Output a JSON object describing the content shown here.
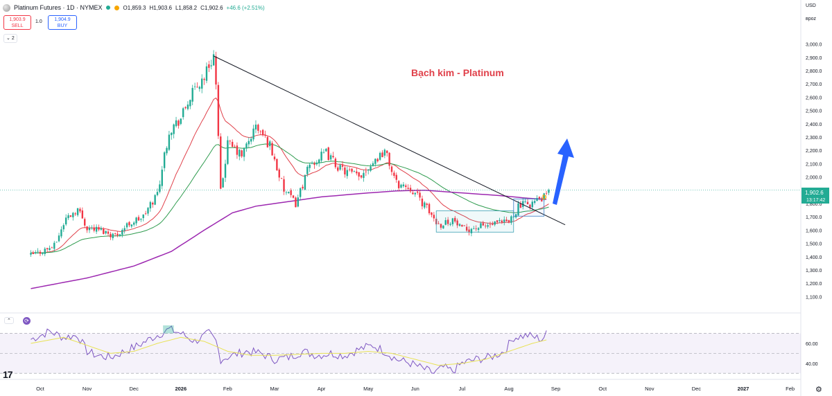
{
  "header": {
    "symbol_title": "Platinum Futures · 1D · NYMEX",
    "open": "O1,859.3",
    "high": "H1,903.6",
    "low": "L1,858.2",
    "close": "C1,902.6",
    "change": "+46.6 (+2.51%)",
    "sell_price": "1,903.9",
    "sell_label": "SELL",
    "qty": "1.0",
    "buy_price": "1,904.9",
    "buy_label": "BUY",
    "collapse_label": "2",
    "currency": "USD",
    "unit": "вpoz"
  },
  "annotation_title": "Bạch kim - Platinum",
  "d_marker": "D",
  "price_tag": {
    "price": "1,902.6",
    "countdown": "13:17:42"
  },
  "rsi_collapse_label": "⌃",
  "colors": {
    "up": "#22ab94",
    "down": "#f23645",
    "ema20": "#e0404a",
    "ema50": "#2e9b4e",
    "ema200": "#9c27b0",
    "rsi": "#7e57c2",
    "rsi_ma": "#e8e254",
    "arrow": "#2962ff",
    "title": "#e0404a"
  },
  "icons": [
    "platinum-symbol-icon",
    "market-open-icon",
    "dividend-icon",
    "tradingview-logo-icon",
    "settings-gear-icon"
  ],
  "chart_data": [
    {
      "type": "candlestick",
      "title": "Platinum Futures · 1D · NYMEX",
      "y_ticks": [
        "3,000.0",
        "2,900.0",
        "2,800.0",
        "2,700.0",
        "2,600.0",
        "2,500.0",
        "2,400.0",
        "2,300.0",
        "2,200.0",
        "2,100.0",
        "2,000.0",
        "1,800.0",
        "1,700.0",
        "1,600.0",
        "1,500.0",
        "1,400.0",
        "1,300.0",
        "1,200.0",
        "1,100.0"
      ],
      "ylim": [
        1050,
        3050
      ],
      "x_ticks": [
        "Oct",
        "Nov",
        "Dec",
        "2026",
        "Feb",
        "Mar",
        "Apr",
        "May",
        "Jun",
        "Jul",
        "Aug",
        "Sep",
        "Oct",
        "Nov",
        "Dec",
        "2027",
        "Feb"
      ],
      "x_tick_months": [
        0,
        1,
        2,
        3,
        4,
        5,
        6,
        7,
        8,
        9,
        10,
        11,
        12,
        13,
        14,
        15,
        16
      ],
      "last_price": 1902.6,
      "close_path": [
        [
          -0.2,
          1410
        ],
        [
          0.3,
          1480
        ],
        [
          0.55,
          1690
        ],
        [
          0.8,
          1760
        ],
        [
          1.0,
          1620
        ],
        [
          1.3,
          1600
        ],
        [
          1.6,
          1560
        ],
        [
          1.9,
          1650
        ],
        [
          2.2,
          1700
        ],
        [
          2.5,
          1880
        ],
        [
          2.75,
          2350
        ],
        [
          3.0,
          2440
        ],
        [
          3.2,
          2600
        ],
        [
          3.5,
          2760
        ],
        [
          3.7,
          2920
        ],
        [
          3.75,
          2680
        ],
        [
          3.85,
          1880
        ],
        [
          4.0,
          2250
        ],
        [
          4.3,
          2160
        ],
        [
          4.6,
          2380
        ],
        [
          4.9,
          2240
        ],
        [
          5.2,
          1900
        ],
        [
          5.45,
          1800
        ],
        [
          5.75,
          2090
        ],
        [
          6.1,
          2180
        ],
        [
          6.4,
          2060
        ],
        [
          6.8,
          2000
        ],
        [
          7.0,
          2080
        ],
        [
          7.35,
          2200
        ],
        [
          7.6,
          1950
        ],
        [
          7.9,
          1920
        ],
        [
          8.15,
          1810
        ],
        [
          8.5,
          1640
        ],
        [
          8.8,
          1680
        ],
        [
          9.0,
          1600
        ],
        [
          9.3,
          1620
        ],
        [
          9.65,
          1640
        ],
        [
          10.0,
          1660
        ],
        [
          10.2,
          1780
        ],
        [
          10.45,
          1800
        ],
        [
          10.75,
          1845
        ],
        [
          10.85,
          1902.6
        ]
      ],
      "ema200": [
        [
          -0.2,
          1160
        ],
        [
          1.0,
          1240
        ],
        [
          2.0,
          1330
        ],
        [
          2.8,
          1440
        ],
        [
          3.5,
          1600
        ],
        [
          4.1,
          1730
        ],
        [
          4.6,
          1780
        ],
        [
          5.2,
          1810
        ],
        [
          6.0,
          1850
        ],
        [
          7.0,
          1880
        ],
        [
          7.6,
          1895
        ],
        [
          8.2,
          1900
        ],
        [
          9.0,
          1880
        ],
        [
          9.8,
          1860
        ],
        [
          10.4,
          1840
        ],
        [
          10.85,
          1830
        ]
      ],
      "trendline": [
        [
          3.7,
          2910
        ],
        [
          11.2,
          1640
        ]
      ],
      "title_annotation": "Bạch kim - Platinum"
    },
    {
      "type": "line",
      "name_hint": "RSI",
      "y_ticks": [
        "60.00",
        "40.00"
      ],
      "ylim": [
        26,
        78
      ],
      "upper_band": 70,
      "lower_band": 30,
      "rsi_path": [
        [
          -0.2,
          64
        ],
        [
          0.2,
          72
        ],
        [
          0.5,
          66
        ],
        [
          0.8,
          68
        ],
        [
          1.0,
          52
        ],
        [
          1.2,
          48
        ],
        [
          1.5,
          46
        ],
        [
          1.8,
          52
        ],
        [
          2.1,
          58
        ],
        [
          2.4,
          66
        ],
        [
          2.75,
          74
        ],
        [
          3.0,
          70
        ],
        [
          3.3,
          62
        ],
        [
          3.6,
          70
        ],
        [
          3.75,
          62
        ],
        [
          3.85,
          44
        ],
        [
          4.1,
          48
        ],
        [
          4.4,
          52
        ],
        [
          4.7,
          50
        ],
        [
          5.0,
          44
        ],
        [
          5.3,
          46
        ],
        [
          5.6,
          52
        ],
        [
          5.9,
          48
        ],
        [
          6.2,
          50
        ],
        [
          6.5,
          48
        ],
        [
          6.8,
          54
        ],
        [
          7.1,
          58
        ],
        [
          7.35,
          52
        ],
        [
          7.6,
          44
        ],
        [
          7.9,
          40
        ],
        [
          8.2,
          34
        ],
        [
          8.4,
          30
        ],
        [
          8.6,
          36
        ],
        [
          8.8,
          32
        ],
        [
          9.0,
          40
        ],
        [
          9.3,
          44
        ],
        [
          9.6,
          46
        ],
        [
          9.9,
          52
        ],
        [
          10.1,
          66
        ],
        [
          10.4,
          68
        ],
        [
          10.7,
          64
        ],
        [
          10.85,
          72
        ]
      ],
      "ma_path": [
        [
          -0.2,
          60
        ],
        [
          0.5,
          66
        ],
        [
          1.0,
          58
        ],
        [
          1.5,
          50
        ],
        [
          2.0,
          52
        ],
        [
          2.5,
          60
        ],
        [
          3.0,
          66
        ],
        [
          3.5,
          62
        ],
        [
          4.0,
          52
        ],
        [
          4.5,
          48
        ],
        [
          5.0,
          48
        ],
        [
          5.5,
          49
        ],
        [
          6.0,
          50
        ],
        [
          6.5,
          50
        ],
        [
          7.0,
          52
        ],
        [
          7.5,
          50
        ],
        [
          8.0,
          44
        ],
        [
          8.5,
          38
        ],
        [
          9.0,
          40
        ],
        [
          9.5,
          44
        ],
        [
          10.0,
          52
        ],
        [
          10.5,
          60
        ],
        [
          10.85,
          64
        ]
      ]
    }
  ]
}
